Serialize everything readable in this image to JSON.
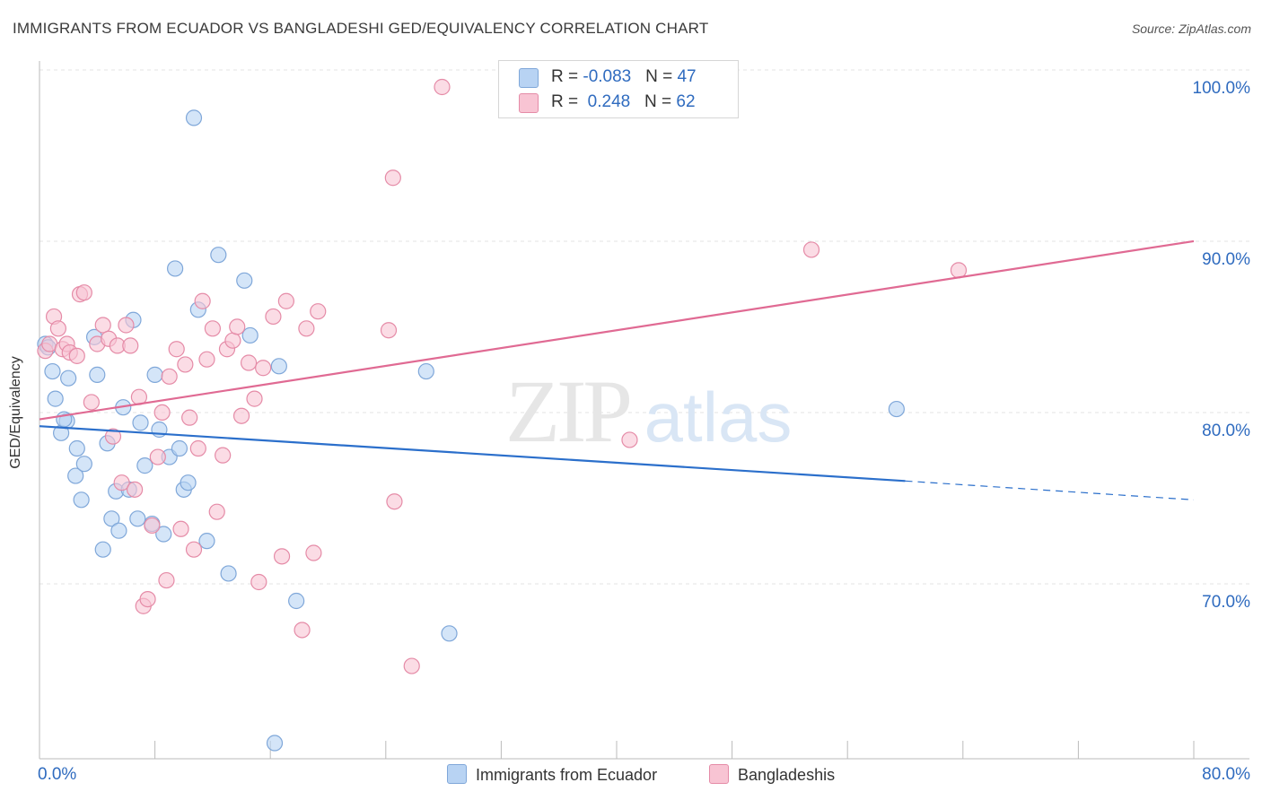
{
  "header": {
    "title": "IMMIGRANTS FROM ECUADOR VS BANGLADESHI GED/EQUIVALENCY CORRELATION CHART",
    "source": "Source: ZipAtlas.com"
  },
  "watermark": {
    "zip": "ZIP",
    "atlas": "atlas"
  },
  "legend": {
    "rows": [
      {
        "r_label": "R = ",
        "r_value": "-0.083",
        "n_label": "N = ",
        "n_value": "47"
      },
      {
        "r_label": "R = ",
        "r_value": " 0.248",
        "n_label": "N = ",
        "n_value": "62"
      }
    ],
    "bottom": [
      "Immigrants from Ecuador",
      "Bangladeshis"
    ]
  },
  "colors": {
    "blue_fill": "#b8d3f3",
    "blue_stroke": "#7fa7d9",
    "blue_line": "#2b6fcb",
    "pink_fill": "#f8c4d3",
    "pink_stroke": "#e58ba7",
    "pink_line": "#e06a93",
    "axis_text": "#2f6bbf",
    "grid": "#e3e3e3"
  },
  "chart_data": {
    "type": "scatter",
    "title": "IMMIGRANTS FROM ECUADOR VS BANGLADESHI GED/EQUIVALENCY CORRELATION CHART",
    "xlabel": "",
    "ylabel": "GED/Equivalency",
    "xlim": [
      0,
      80
    ],
    "ylim": [
      60,
      102
    ],
    "x_tick_labels": [
      "0.0%",
      "80.0%"
    ],
    "y_ticks": [
      70,
      80,
      90,
      100
    ],
    "y_tick_labels": [
      "70.0%",
      "80.0%",
      "90.0%",
      "100.0%"
    ],
    "grid": true,
    "legend_position": "top-center",
    "series": [
      {
        "name": "Immigrants from Ecuador",
        "r": -0.083,
        "n": 47,
        "trend": {
          "x0": 0,
          "y0": 80.2,
          "x1": 60,
          "y1": 77.0,
          "dash_to_x": 80,
          "dash_to_y": 75.9
        },
        "points": [
          [
            0.4,
            85.0
          ],
          [
            0.9,
            83.4
          ],
          [
            1.1,
            81.8
          ],
          [
            1.5,
            79.8
          ],
          [
            1.9,
            80.5
          ],
          [
            1.7,
            80.6
          ],
          [
            2.0,
            83.0
          ],
          [
            2.6,
            78.9
          ],
          [
            2.5,
            77.3
          ],
          [
            3.1,
            78.0
          ],
          [
            2.9,
            75.9
          ],
          [
            3.8,
            85.4
          ],
          [
            4.0,
            83.2
          ],
          [
            4.4,
            73.0
          ],
          [
            4.7,
            79.2
          ],
          [
            5.0,
            74.8
          ],
          [
            5.3,
            76.4
          ],
          [
            5.5,
            74.1
          ],
          [
            5.8,
            81.3
          ],
          [
            6.2,
            76.5
          ],
          [
            6.5,
            86.4
          ],
          [
            6.8,
            74.8
          ],
          [
            7.0,
            80.4
          ],
          [
            7.3,
            77.9
          ],
          [
            7.8,
            74.5
          ],
          [
            8.0,
            83.2
          ],
          [
            8.3,
            80.0
          ],
          [
            8.6,
            73.9
          ],
          [
            9.0,
            78.4
          ],
          [
            9.4,
            89.4
          ],
          [
            9.7,
            78.9
          ],
          [
            10.0,
            76.5
          ],
          [
            10.3,
            76.9
          ],
          [
            10.7,
            98.2
          ],
          [
            11.0,
            87.0
          ],
          [
            11.6,
            73.5
          ],
          [
            12.4,
            90.2
          ],
          [
            13.1,
            71.6
          ],
          [
            14.2,
            88.7
          ],
          [
            14.6,
            85.5
          ],
          [
            16.6,
            83.7
          ],
          [
            17.8,
            70.0
          ],
          [
            26.8,
            83.4
          ],
          [
            28.4,
            68.1
          ],
          [
            16.3,
            61.7
          ],
          [
            59.4,
            81.2
          ],
          [
            0.6,
            84.8
          ]
        ]
      },
      {
        "name": "Bangladeshis",
        "r": 0.248,
        "n": 62,
        "trend": {
          "x0": 0,
          "y0": 80.6,
          "x1": 80,
          "y1": 91.0
        },
        "points": [
          [
            0.4,
            84.6
          ],
          [
            0.7,
            85.0
          ],
          [
            1.0,
            86.6
          ],
          [
            1.3,
            85.9
          ],
          [
            1.6,
            84.7
          ],
          [
            1.9,
            85.0
          ],
          [
            2.1,
            84.5
          ],
          [
            2.6,
            84.3
          ],
          [
            2.8,
            87.9
          ],
          [
            3.1,
            88.0
          ],
          [
            3.6,
            81.6
          ],
          [
            4.0,
            85.0
          ],
          [
            4.4,
            86.1
          ],
          [
            4.8,
            85.3
          ],
          [
            5.1,
            79.6
          ],
          [
            5.4,
            84.9
          ],
          [
            5.7,
            76.9
          ],
          [
            6.0,
            86.1
          ],
          [
            6.3,
            84.9
          ],
          [
            6.6,
            76.5
          ],
          [
            6.9,
            81.9
          ],
          [
            7.2,
            69.7
          ],
          [
            7.5,
            70.1
          ],
          [
            7.8,
            74.4
          ],
          [
            8.2,
            78.4
          ],
          [
            8.5,
            81.0
          ],
          [
            8.8,
            71.2
          ],
          [
            9.0,
            83.1
          ],
          [
            9.5,
            84.7
          ],
          [
            9.8,
            74.2
          ],
          [
            10.1,
            83.8
          ],
          [
            10.4,
            80.7
          ],
          [
            10.7,
            73.0
          ],
          [
            11.0,
            78.9
          ],
          [
            11.3,
            87.5
          ],
          [
            11.6,
            84.1
          ],
          [
            12.0,
            85.9
          ],
          [
            12.3,
            75.2
          ],
          [
            12.7,
            78.5
          ],
          [
            13.0,
            84.7
          ],
          [
            13.4,
            85.2
          ],
          [
            13.7,
            86.0
          ],
          [
            14.0,
            80.8
          ],
          [
            14.5,
            83.9
          ],
          [
            14.9,
            81.8
          ],
          [
            15.2,
            71.1
          ],
          [
            15.5,
            83.6
          ],
          [
            16.2,
            86.6
          ],
          [
            16.8,
            72.6
          ],
          [
            17.1,
            87.5
          ],
          [
            18.2,
            68.3
          ],
          [
            18.5,
            85.9
          ],
          [
            19.0,
            72.8
          ],
          [
            19.3,
            86.9
          ],
          [
            24.2,
            85.8
          ],
          [
            24.6,
            75.8
          ],
          [
            24.5,
            94.7
          ],
          [
            25.8,
            66.2
          ],
          [
            27.9,
            100.0
          ],
          [
            40.9,
            79.4
          ],
          [
            53.5,
            90.5
          ],
          [
            63.7,
            89.3
          ]
        ]
      }
    ]
  }
}
